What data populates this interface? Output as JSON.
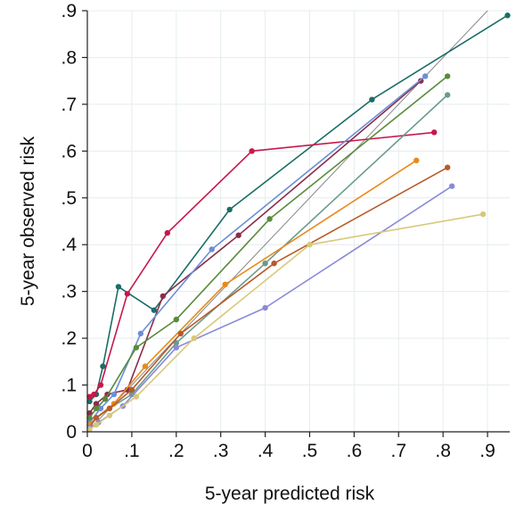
{
  "chart_data": {
    "type": "line",
    "title": "",
    "xlabel": "5-year predicted risk",
    "ylabel": "5-year observed risk",
    "xlim": [
      0,
      0.95
    ],
    "ylim": [
      0,
      0.9
    ],
    "x_ticks": [
      0,
      0.1,
      0.2,
      0.3,
      0.4,
      0.5,
      0.6,
      0.7,
      0.8,
      0.9
    ],
    "x_tick_labels": [
      "0",
      ".1",
      ".2",
      ".3",
      ".4",
      ".5",
      ".6",
      ".7",
      ".8",
      ".9"
    ],
    "y_ticks": [
      0,
      0.1,
      0.2,
      0.3,
      0.4,
      0.5,
      0.6,
      0.7,
      0.8,
      0.9
    ],
    "y_tick_labels": [
      "0",
      ".1",
      ".2",
      ".3",
      ".4",
      ".5",
      ".6",
      ".7",
      ".8",
      ".9"
    ],
    "grid": true,
    "legend": "none",
    "reference_line": {
      "from": [
        0,
        0
      ],
      "to": [
        0.9,
        0.9
      ],
      "color": "#888888"
    },
    "series": [
      {
        "color": "#1a6e66",
        "x": [
          0.005,
          0.02,
          0.035,
          0.07,
          0.15,
          0.32,
          0.64,
          0.945
        ],
        "y": [
          0.065,
          0.08,
          0.14,
          0.31,
          0.26,
          0.475,
          0.71,
          0.89
        ]
      },
      {
        "color": "#c8174a",
        "x": [
          0.005,
          0.015,
          0.03,
          0.09,
          0.18,
          0.37,
          0.78
        ],
        "y": [
          0.075,
          0.08,
          0.1,
          0.295,
          0.425,
          0.6,
          0.64
        ]
      },
      {
        "color": "#8b2d4a",
        "x": [
          0.005,
          0.02,
          0.045,
          0.09,
          0.17,
          0.34,
          0.75
        ],
        "y": [
          0.04,
          0.06,
          0.08,
          0.09,
          0.29,
          0.42,
          0.75
        ]
      },
      {
        "color": "#6b8fd6",
        "x": [
          0.005,
          0.03,
          0.06,
          0.12,
          0.28,
          0.76
        ],
        "y": [
          0.02,
          0.05,
          0.08,
          0.21,
          0.39,
          0.76
        ]
      },
      {
        "color": "#5a8a3c",
        "x": [
          0.005,
          0.02,
          0.04,
          0.11,
          0.2,
          0.41,
          0.81
        ],
        "y": [
          0.03,
          0.05,
          0.07,
          0.18,
          0.24,
          0.455,
          0.76
        ]
      },
      {
        "color": "#6a9a8e",
        "x": [
          0.005,
          0.02,
          0.05,
          0.1,
          0.2,
          0.4,
          0.81
        ],
        "y": [
          0.015,
          0.03,
          0.05,
          0.08,
          0.19,
          0.36,
          0.72
        ]
      },
      {
        "color": "#e88a1a",
        "x": [
          0.005,
          0.02,
          0.06,
          0.13,
          0.31,
          0.74
        ],
        "y": [
          0.015,
          0.03,
          0.06,
          0.14,
          0.315,
          0.58
        ]
      },
      {
        "color": "#b85a2a",
        "x": [
          0.005,
          0.02,
          0.05,
          0.1,
          0.21,
          0.42,
          0.81
        ],
        "y": [
          0.01,
          0.03,
          0.05,
          0.09,
          0.21,
          0.36,
          0.565
        ]
      },
      {
        "color": "#8a8ad8",
        "x": [
          0.005,
          0.025,
          0.08,
          0.2,
          0.4,
          0.82
        ],
        "y": [
          0.01,
          0.02,
          0.055,
          0.18,
          0.265,
          0.525
        ]
      },
      {
        "color": "#d8c87a",
        "x": [
          0.005,
          0.02,
          0.05,
          0.11,
          0.24,
          0.5,
          0.89
        ],
        "y": [
          0.005,
          0.015,
          0.035,
          0.075,
          0.2,
          0.4,
          0.465
        ]
      }
    ]
  }
}
